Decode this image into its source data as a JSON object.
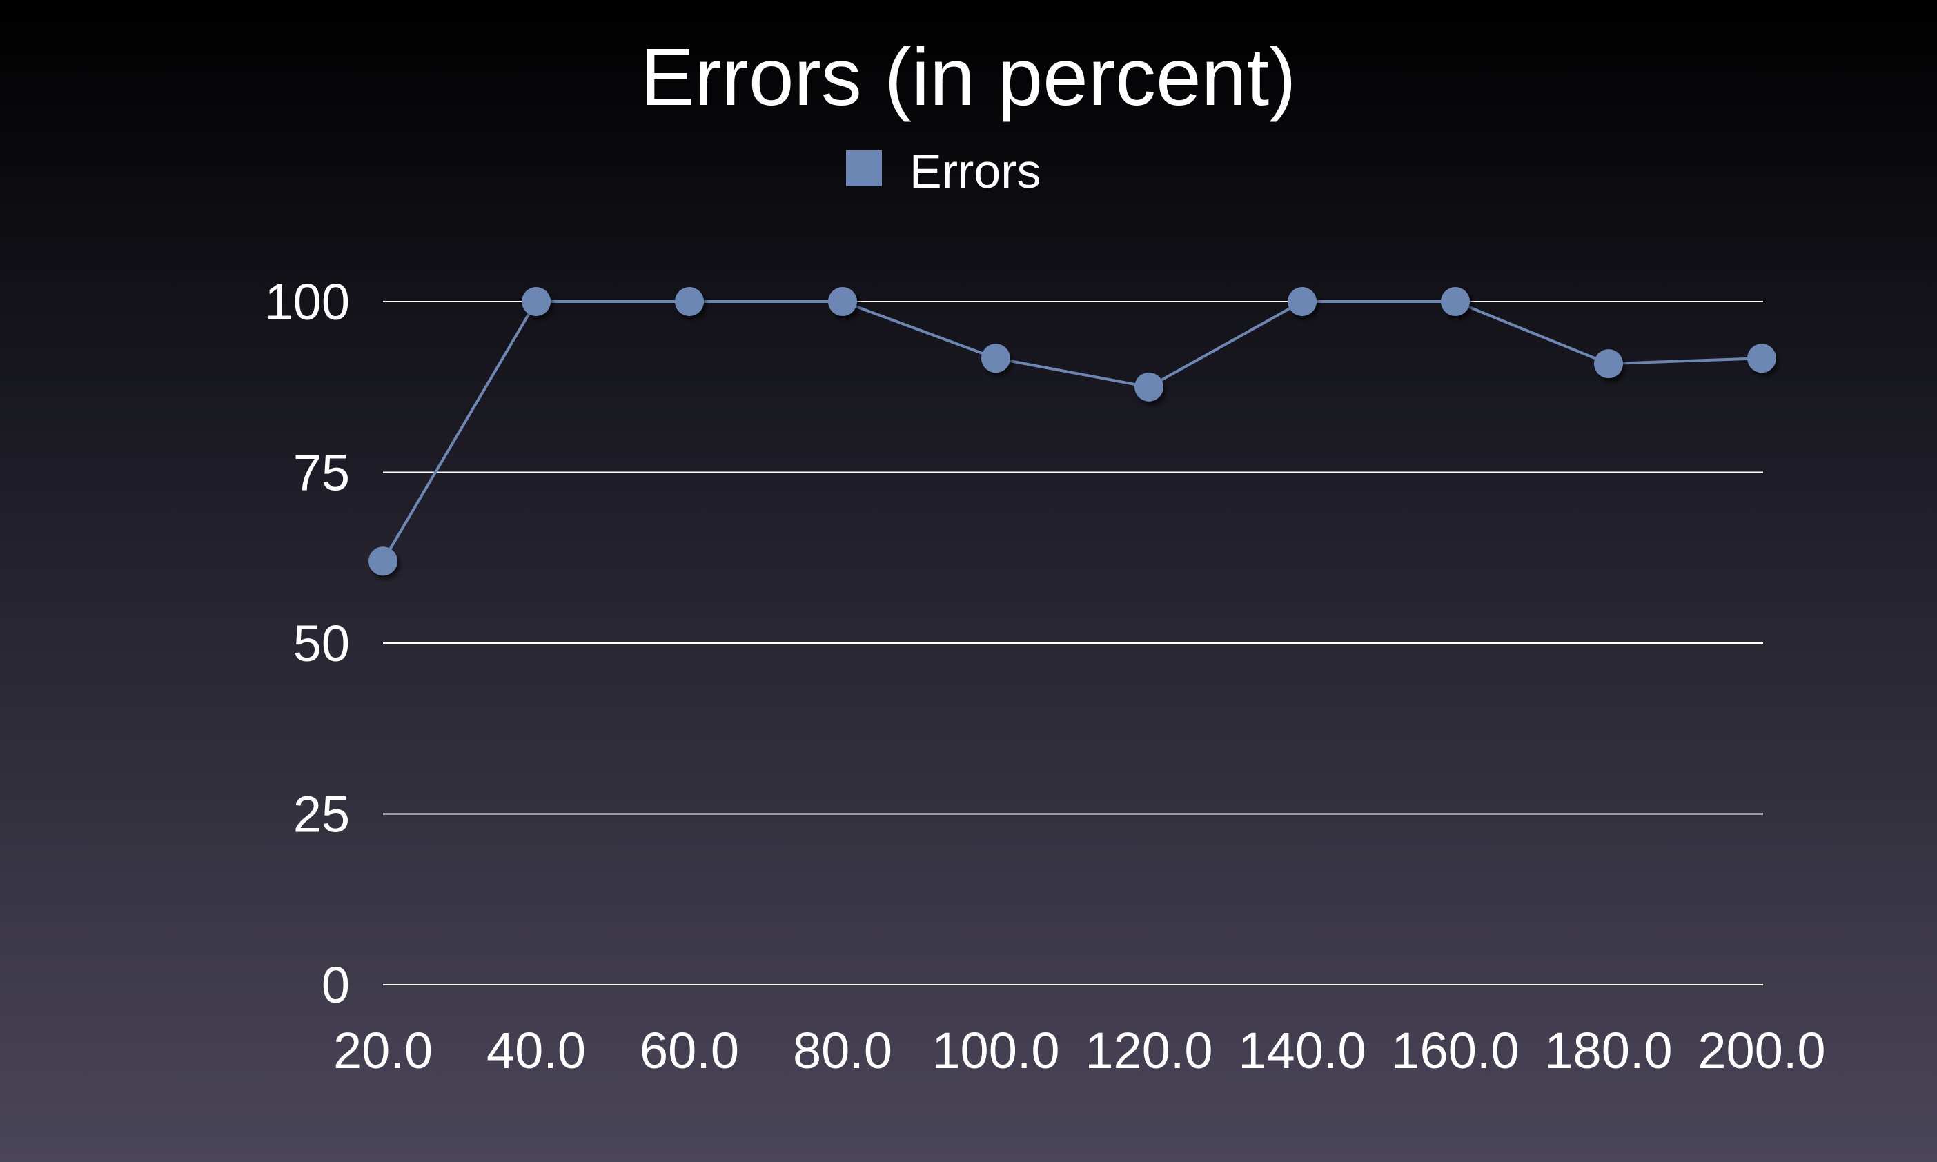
{
  "chart_data": {
    "type": "line",
    "title": "Errors (in percent)",
    "xlabel": "",
    "ylabel": "",
    "categories": [
      "20.0",
      "40.0",
      "60.0",
      "80.0",
      "100.0",
      "120.0",
      "140.0",
      "160.0",
      "180.0",
      "200.0"
    ],
    "x": [
      20,
      40,
      60,
      80,
      100,
      120,
      140,
      160,
      180,
      200
    ],
    "series": [
      {
        "name": "Errors",
        "color": "#6d87b4",
        "values": [
          62,
          100,
          100,
          100,
          91.7,
          87.5,
          100,
          100,
          90.9,
          91.7
        ]
      }
    ],
    "ylim": [
      0,
      100
    ],
    "yticks": [
      "0",
      "25",
      "50",
      "75",
      "100"
    ],
    "ytick_values": [
      0,
      25,
      50,
      75,
      100
    ],
    "grid": true,
    "legend_position": "top-center"
  }
}
